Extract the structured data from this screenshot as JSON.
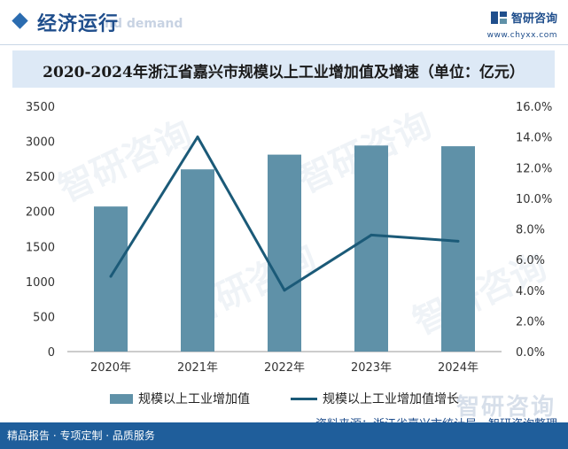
{
  "header": {
    "section_title": "经济运行",
    "section_title_en": "nd demand",
    "brand_name": "智研咨询",
    "brand_url": "www.chyxx.com"
  },
  "colors": {
    "bar": "#5f91a8",
    "line": "#1b5a78",
    "brand": "#1f4e8c",
    "title_band": "#dde9f6",
    "footer": "#1f5e9b"
  },
  "legend": {
    "bar_label": "规模以上工业增加值",
    "line_label": "规模以上工业增加值增长"
  },
  "source": "资料来源：浙江省嘉兴市统计局、智研咨询整理",
  "footer": {
    "text": "精品报告 · 专项定制 · 品质服务"
  },
  "watermark": "智研咨询",
  "chart_data": {
    "type": "bar",
    "title": "2020-2024年浙江省嘉兴市规模以上工业增加值及增速（单位：亿元）",
    "categories": [
      "2020年",
      "2021年",
      "2022年",
      "2023年",
      "2024年"
    ],
    "series": [
      {
        "name": "规模以上工业增加值",
        "type": "bar",
        "axis": "left",
        "values": [
          2070,
          2600,
          2810,
          2940,
          2930
        ]
      },
      {
        "name": "规模以上工业增加值增长",
        "type": "line",
        "axis": "right",
        "values": [
          4.9,
          14.0,
          4.0,
          7.6,
          7.2
        ]
      }
    ],
    "y_left": {
      "min": 0,
      "max": 3500,
      "step": 500,
      "ticks": [
        "0",
        "500",
        "1000",
        "1500",
        "2000",
        "2500",
        "3000",
        "3500"
      ]
    },
    "y_right": {
      "min": 0,
      "max": 16,
      "step": 2,
      "ticks": [
        "0.0%",
        "2.0%",
        "4.0%",
        "6.0%",
        "8.0%",
        "10.0%",
        "12.0%",
        "14.0%",
        "16.0%"
      ]
    },
    "grid": false,
    "legend_position": "bottom"
  }
}
